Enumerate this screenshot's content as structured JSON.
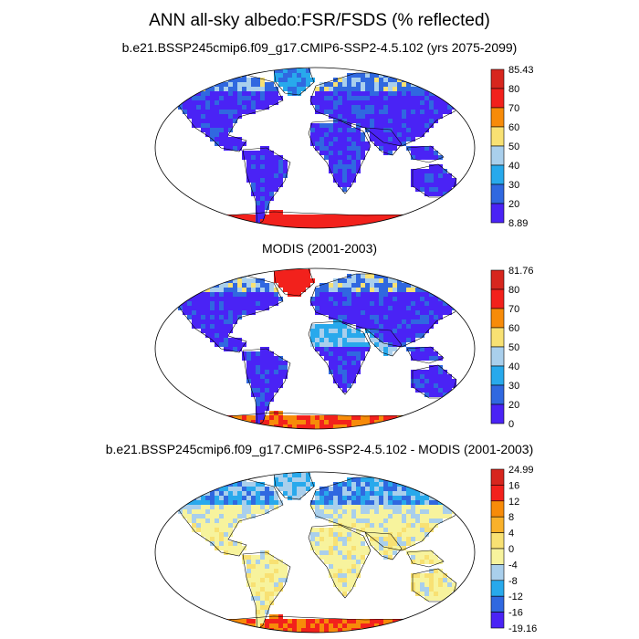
{
  "main_title": "ANN all-sky albedo:FSR/FSDS (% reflected)",
  "panels": [
    {
      "title": "b.e21.BSSP245cmip6.f09_g17.CMIP6-SSP2-4.5.102 (yrs 2075-2099)",
      "colorbar": {
        "labels": [
          "85.43",
          "80",
          "70",
          "60",
          "50",
          "40",
          "30",
          "20",
          "8.89"
        ],
        "colors": [
          "#d7261e",
          "#f2211c",
          "#f78b09",
          "#f8e173",
          "#a9cfec",
          "#28a9ec",
          "#3068e0",
          "#4a23f5"
        ]
      }
    },
    {
      "title": "MODIS (2001-2003)",
      "colorbar": {
        "labels": [
          "81.76",
          "80",
          "70",
          "60",
          "50",
          "40",
          "30",
          "20",
          "0"
        ],
        "colors": [
          "#d7261e",
          "#f2211c",
          "#f78b09",
          "#f8e173",
          "#a9cfec",
          "#28a9ec",
          "#3068e0",
          "#4a23f5"
        ]
      }
    },
    {
      "title": "b.e21.BSSP245cmip6.f09_g17.CMIP6-SSP2-4.5.102 - MODIS (2001-2003)",
      "colorbar": {
        "labels": [
          "24.99",
          "16",
          "12",
          "8",
          "4",
          "0",
          "-4",
          "-8",
          "-12",
          "-16",
          "-19.16"
        ],
        "colors": [
          "#d7261e",
          "#f2211c",
          "#f78b09",
          "#f9b12a",
          "#f8e173",
          "#f7f39d",
          "#a9cfec",
          "#28a9ec",
          "#3068e0",
          "#4a23f5"
        ]
      }
    }
  ]
}
